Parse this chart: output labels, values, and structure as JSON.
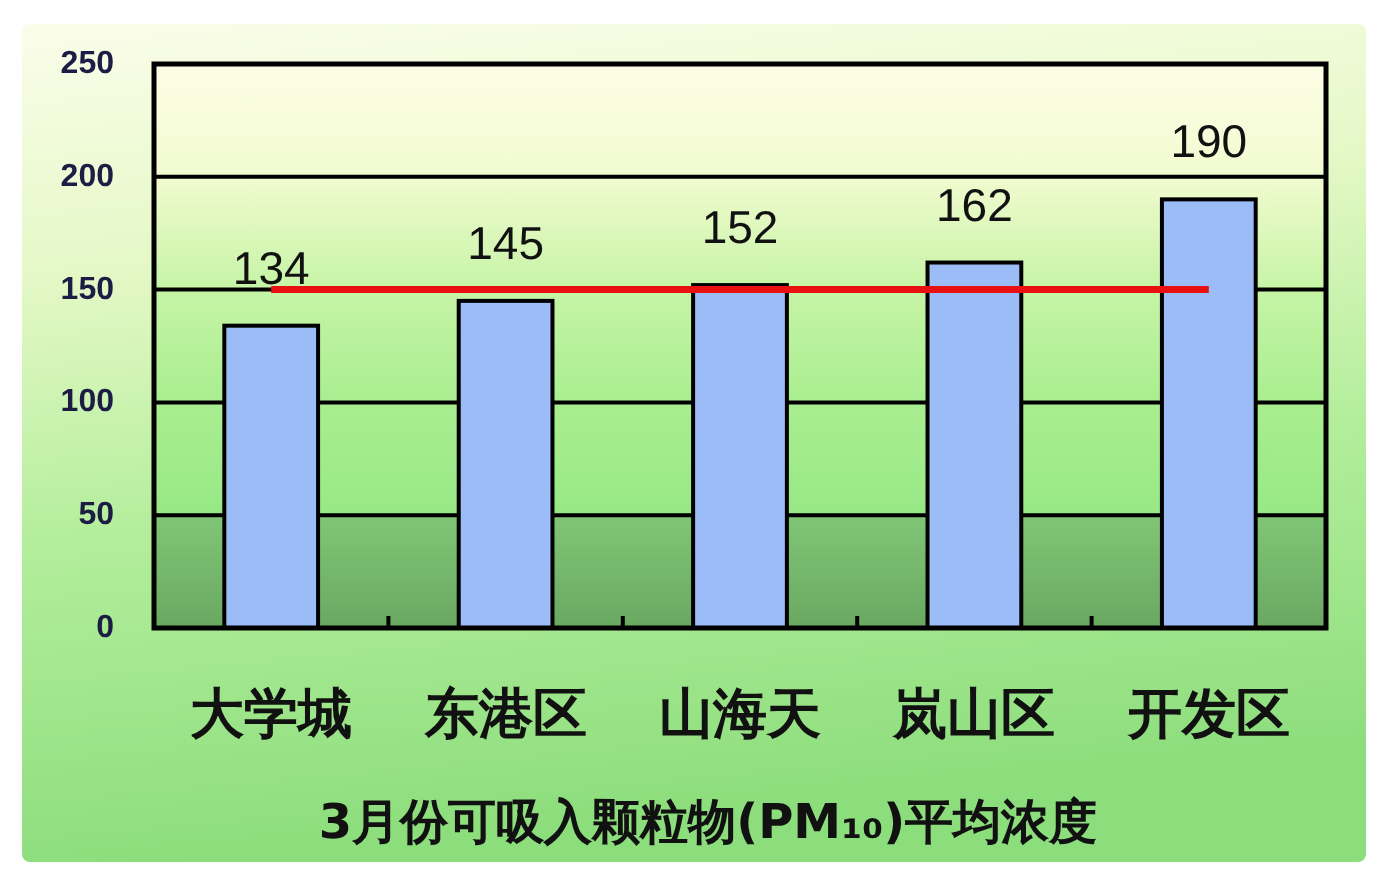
{
  "chart_data": {
    "type": "bar",
    "title": "3月份可吸入颗粒物(PM₁₀)平均浓度",
    "categories": [
      "大学城",
      "东港区",
      "山海天",
      "岚山区",
      "开发区"
    ],
    "series": [
      {
        "color": "#9cbcf8",
        "values": [
          134,
          145,
          152,
          162,
          190
        ],
        "value_labels": [
          "134",
          "145",
          "152",
          "162",
          "190"
        ]
      },
      {
        "type": "line",
        "color": "#e81010",
        "values": [
          150,
          150,
          150,
          150,
          150
        ]
      }
    ],
    "ylim": [
      0,
      250
    ],
    "yticks": [
      0,
      50,
      100,
      150,
      200,
      250
    ],
    "grid": "y"
  }
}
